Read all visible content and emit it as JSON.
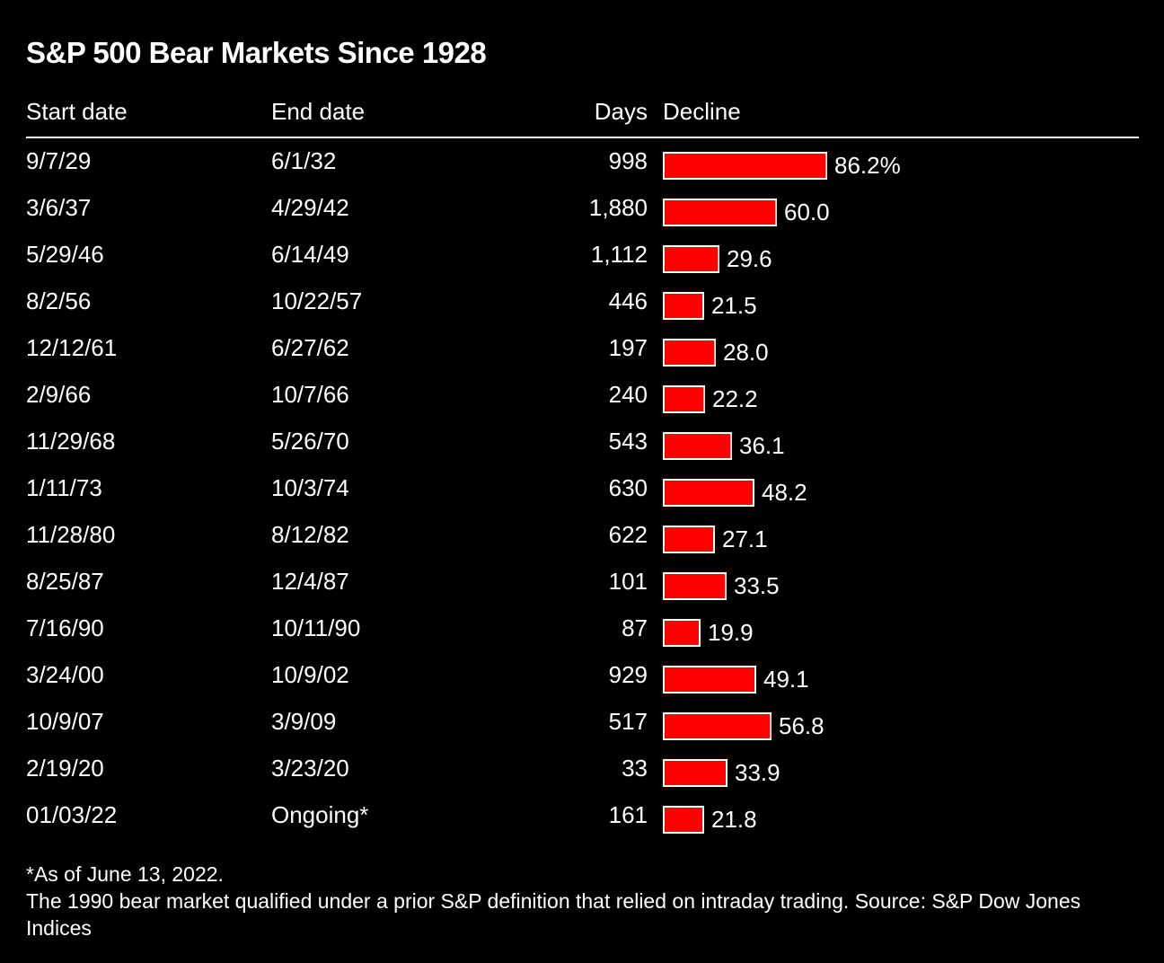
{
  "title": "S&P 500 Bear Markets Since 1928",
  "headers": {
    "start": "Start date",
    "end": "End date",
    "days": "Days",
    "decline": "Decline"
  },
  "colors": {
    "background": "#000000",
    "bar": "#ff0000",
    "text": "#ffffff"
  },
  "footnote": {
    "line1": "*As of June 13, 2022.",
    "line2": "The 1990 bear market qualified under a prior S&P definition that relied on intraday trading. Source: S&P Dow Jones Indices"
  },
  "chart_data": {
    "type": "table",
    "title": "S&P 500 Bear Markets Since 1928",
    "columns": [
      "Start date",
      "End date",
      "Days",
      "Decline"
    ],
    "decline_max": 86.2,
    "rows": [
      {
        "start": "9/7/29",
        "end": "6/1/32",
        "days": "998",
        "decline": 86.2,
        "decline_label": "86.2%"
      },
      {
        "start": "3/6/37",
        "end": "4/29/42",
        "days": "1,880",
        "decline": 60.0,
        "decline_label": "60.0"
      },
      {
        "start": "5/29/46",
        "end": "6/14/49",
        "days": "1,112",
        "decline": 29.6,
        "decline_label": "29.6"
      },
      {
        "start": "8/2/56",
        "end": "10/22/57",
        "days": "446",
        "decline": 21.5,
        "decline_label": "21.5"
      },
      {
        "start": "12/12/61",
        "end": "6/27/62",
        "days": "197",
        "decline": 28.0,
        "decline_label": "28.0"
      },
      {
        "start": "2/9/66",
        "end": "10/7/66",
        "days": "240",
        "decline": 22.2,
        "decline_label": "22.2"
      },
      {
        "start": "11/29/68",
        "end": "5/26/70",
        "days": "543",
        "decline": 36.1,
        "decline_label": "36.1"
      },
      {
        "start": "1/11/73",
        "end": "10/3/74",
        "days": "630",
        "decline": 48.2,
        "decline_label": "48.2"
      },
      {
        "start": "11/28/80",
        "end": "8/12/82",
        "days": "622",
        "decline": 27.1,
        "decline_label": "27.1"
      },
      {
        "start": "8/25/87",
        "end": "12/4/87",
        "days": "101",
        "decline": 33.5,
        "decline_label": "33.5"
      },
      {
        "start": "7/16/90",
        "end": "10/11/90",
        "days": "87",
        "decline": 19.9,
        "decline_label": "19.9"
      },
      {
        "start": "3/24/00",
        "end": "10/9/02",
        "days": "929",
        "decline": 49.1,
        "decline_label": "49.1"
      },
      {
        "start": "10/9/07",
        "end": "3/9/09",
        "days": "517",
        "decline": 56.8,
        "decline_label": "56.8"
      },
      {
        "start": "2/19/20",
        "end": "3/23/20",
        "days": "33",
        "decline": 33.9,
        "decline_label": "33.9"
      },
      {
        "start": "01/03/22",
        "end": "Ongoing*",
        "days": "161",
        "decline": 21.8,
        "decline_label": "21.8"
      }
    ]
  }
}
